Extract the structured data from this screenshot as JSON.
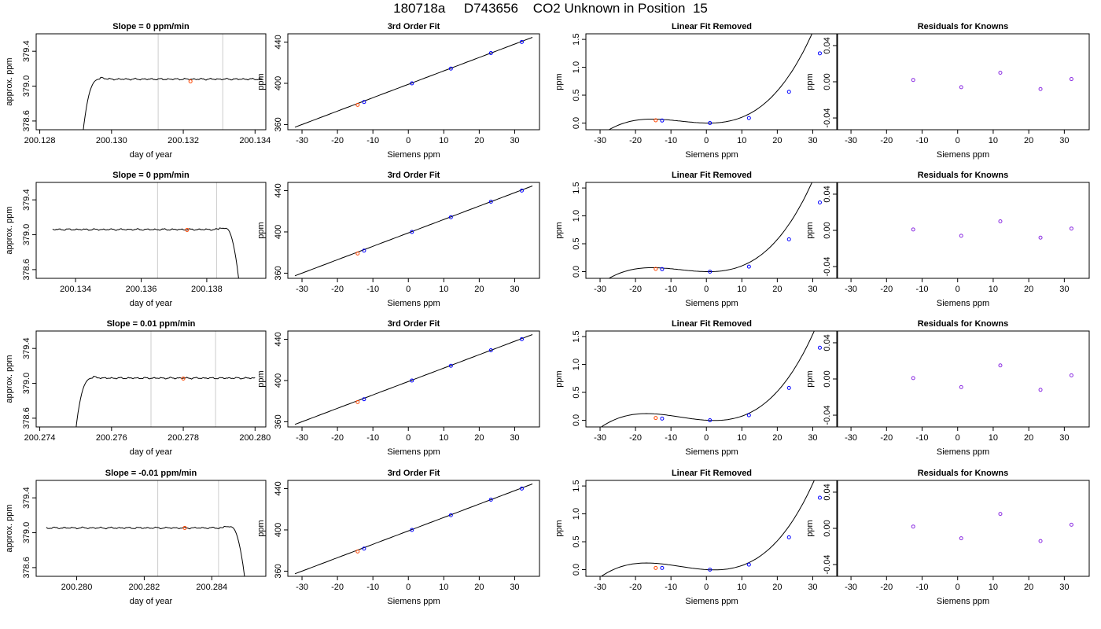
{
  "page_title": "180718a     D743656    CO2 Unknown in Position  15",
  "colors": {
    "trace": "#000000",
    "marker": "#cccccc",
    "unknown": "#ff4500",
    "known": "#0000ff",
    "residual": "#8a2be2"
  },
  "chart_data": [
    {
      "row": 0,
      "type": "line",
      "title": "Slope =  0  ppm/min",
      "xlabel": "day of year",
      "ylabel": "approx. ppm",
      "xlim": [
        200.1279,
        200.1343
      ],
      "ylim": [
        378.5,
        379.6
      ],
      "xticks": [
        200.128,
        200.13,
        200.132,
        200.134
      ],
      "xtick_labels": [
        "200.128",
        "200.130",
        "200.132",
        "200.134"
      ],
      "yticks": [
        378.6,
        379.0,
        379.4
      ],
      "ytick_labels": [
        "378.6",
        "379.0",
        "379.4"
      ],
      "vlines": [
        200.1313,
        200.1331
      ],
      "trace": {
        "x0": 200.1292,
        "x1": 200.1342,
        "plateau": 379.08,
        "rise": "start"
      },
      "unknown_point": {
        "x": 200.1322,
        "y": 379.055
      }
    },
    {
      "row": 0,
      "type": "line",
      "title": "3rd Order Fit",
      "xlabel": "Siemens ppm",
      "ylabel": "ppm",
      "xlim": [
        -34,
        37
      ],
      "ylim": [
        355,
        448
      ],
      "xticks": [
        -30,
        -20,
        -10,
        0,
        10,
        20,
        30
      ],
      "xtick_labels": [
        "-30",
        "-20",
        "-10",
        "0",
        "10",
        "20",
        "30"
      ],
      "yticks": [
        360,
        400,
        440
      ],
      "ytick_labels": [
        "360",
        "400",
        "440"
      ],
      "curve": {
        "x0": -32,
        "x1": 35,
        "a": 399.05,
        "b": 1.3
      },
      "known_points": [
        [
          -12.5,
          381.9
        ],
        [
          1.0,
          400.0
        ],
        [
          12.0,
          414.3
        ],
        [
          23.3,
          429.3
        ],
        [
          32.0,
          440.1
        ]
      ],
      "unknown_point": [
        -14.3,
        379.1
      ]
    },
    {
      "row": 0,
      "type": "line",
      "title": "Linear Fit Removed",
      "xlabel": "Siemens ppm",
      "ylabel": "ppm",
      "xlim": [
        -34,
        37
      ],
      "ylim": [
        -0.12,
        1.6
      ],
      "xticks": [
        -30,
        -20,
        -10,
        0,
        10,
        20,
        30
      ],
      "xtick_labels": [
        "-30",
        "-20",
        "-10",
        "0",
        "10",
        "20",
        "30"
      ],
      "yticks": [
        0.0,
        0.5,
        1.0,
        1.5
      ],
      "ytick_labels": [
        "0.0",
        "0.5",
        "1.0",
        "1.5"
      ],
      "curve": {
        "x0": -32,
        "x1": 35,
        "c1": -0.001,
        "c2": 0.00078,
        "c3": 3.55e-05
      },
      "known_points": [
        [
          -12.5,
          0.045
        ],
        [
          1.0,
          0.0
        ],
        [
          12.0,
          0.09
        ],
        [
          23.3,
          0.56
        ],
        [
          32.0,
          1.25
        ]
      ],
      "unknown_point": [
        -14.3,
        0.05
      ]
    },
    {
      "row": 0,
      "type": "scatter",
      "title": "Residuals for Knowns",
      "xlabel": "Siemens ppm",
      "ylabel": "ppm",
      "xlim": [
        -34,
        37
      ],
      "ylim": [
        -0.053,
        0.053
      ],
      "xticks": [
        -30,
        -20,
        -10,
        0,
        10,
        20,
        30
      ],
      "xtick_labels": [
        "-30",
        "-20",
        "-10",
        "0",
        "10",
        "20",
        "30"
      ],
      "yticks": [
        -0.04,
        0.0,
        0.04
      ],
      "ytick_labels": [
        "-0.04",
        "0.00",
        "0.04"
      ],
      "points": [
        [
          -12.5,
          0.002
        ],
        [
          1.0,
          -0.006
        ],
        [
          12.0,
          0.01
        ],
        [
          23.3,
          -0.008
        ],
        [
          32.0,
          0.003
        ]
      ]
    },
    {
      "row": 1,
      "type": "line",
      "title": "Slope =  0  ppm/min",
      "xlabel": "day of year",
      "ylabel": "approx. ppm",
      "xlim": [
        200.1328,
        200.1398
      ],
      "ylim": [
        378.5,
        379.6
      ],
      "xticks": [
        200.134,
        200.136,
        200.138
      ],
      "xtick_labels": [
        "200.134",
        "200.136",
        "200.138"
      ],
      "yticks": [
        378.6,
        379.0,
        379.4
      ],
      "ytick_labels": [
        "378.6",
        "379.0",
        "379.4"
      ],
      "vlines": [
        200.1365,
        200.1383
      ],
      "trace": {
        "x0": 200.1333,
        "x1": 200.139,
        "plateau": 379.06,
        "rise": "end"
      },
      "unknown_point": {
        "x": 200.1374,
        "y": 379.055
      }
    },
    {
      "row": 1,
      "type": "line",
      "title": "3rd Order Fit",
      "xlabel": "Siemens ppm",
      "ylabel": "ppm",
      "xlim": [
        -34,
        37
      ],
      "ylim": [
        355,
        448
      ],
      "xticks": [
        -30,
        -20,
        -10,
        0,
        10,
        20,
        30
      ],
      "xtick_labels": [
        "-30",
        "-20",
        "-10",
        "0",
        "10",
        "20",
        "30"
      ],
      "yticks": [
        360,
        400,
        440
      ],
      "ytick_labels": [
        "360",
        "400",
        "440"
      ],
      "curve": {
        "x0": -32,
        "x1": 35,
        "a": 399.05,
        "b": 1.3
      },
      "known_points": [
        [
          -12.5,
          381.9
        ],
        [
          1.0,
          400.0
        ],
        [
          12.0,
          414.3
        ],
        [
          23.3,
          429.3
        ],
        [
          32.0,
          440.1
        ]
      ],
      "unknown_point": [
        -14.3,
        379.1
      ]
    },
    {
      "row": 1,
      "type": "line",
      "title": "Linear Fit Removed",
      "xlabel": "Siemens ppm",
      "ylabel": "ppm",
      "xlim": [
        -34,
        37
      ],
      "ylim": [
        -0.12,
        1.6
      ],
      "xticks": [
        -30,
        -20,
        -10,
        0,
        10,
        20,
        30
      ],
      "xtick_labels": [
        "-30",
        "-20",
        "-10",
        "0",
        "10",
        "20",
        "30"
      ],
      "yticks": [
        0.0,
        0.5,
        1.0,
        1.5
      ],
      "ytick_labels": [
        "0.0",
        "0.5",
        "1.0",
        "1.5"
      ],
      "curve": {
        "x0": -32,
        "x1": 35,
        "c1": -0.001,
        "c2": 0.00078,
        "c3": 3.55e-05
      },
      "known_points": [
        [
          -12.5,
          0.045
        ],
        [
          1.0,
          0.0
        ],
        [
          12.0,
          0.09
        ],
        [
          23.3,
          0.58
        ],
        [
          32.0,
          1.24
        ]
      ],
      "unknown_point": [
        -14.3,
        0.05
      ]
    },
    {
      "row": 1,
      "type": "scatter",
      "title": "Residuals for Knowns",
      "xlabel": "Siemens ppm",
      "ylabel": "ppm",
      "xlim": [
        -34,
        37
      ],
      "ylim": [
        -0.053,
        0.053
      ],
      "xticks": [
        -30,
        -20,
        -10,
        0,
        10,
        20,
        30
      ],
      "xtick_labels": [
        "-30",
        "-20",
        "-10",
        "0",
        "10",
        "20",
        "30"
      ],
      "yticks": [
        -0.04,
        0.0,
        0.04
      ],
      "ytick_labels": [
        "-0.04",
        "0.00",
        "0.04"
      ],
      "points": [
        [
          -12.5,
          0.001
        ],
        [
          1.0,
          -0.006
        ],
        [
          12.0,
          0.01
        ],
        [
          23.3,
          -0.008
        ],
        [
          32.0,
          0.002
        ]
      ]
    },
    {
      "row": 2,
      "type": "line",
      "title": "Slope =  0.01  ppm/min",
      "xlabel": "day of year",
      "ylabel": "approx. ppm",
      "xlim": [
        200.2739,
        200.2803
      ],
      "ylim": [
        378.5,
        379.6
      ],
      "xticks": [
        200.274,
        200.276,
        200.278,
        200.28
      ],
      "xtick_labels": [
        "200.274",
        "200.276",
        "200.278",
        "200.280"
      ],
      "yticks": [
        378.6,
        379.0,
        379.4
      ],
      "ytick_labels": [
        "378.6",
        "379.0",
        "379.4"
      ],
      "vlines": [
        200.2771,
        200.2789
      ],
      "trace": {
        "x0": 200.275,
        "x1": 200.28,
        "plateau": 379.06,
        "rise": "start"
      },
      "unknown_point": {
        "x": 200.278,
        "y": 379.055
      }
    },
    {
      "row": 2,
      "type": "line",
      "title": "3rd Order Fit",
      "xlabel": "Siemens ppm",
      "ylabel": "ppm",
      "xlim": [
        -34,
        37
      ],
      "ylim": [
        355,
        448
      ],
      "xticks": [
        -30,
        -20,
        -10,
        0,
        10,
        20,
        30
      ],
      "xtick_labels": [
        "-30",
        "-20",
        "-10",
        "0",
        "10",
        "20",
        "30"
      ],
      "yticks": [
        360,
        400,
        440
      ],
      "ytick_labels": [
        "360",
        "400",
        "440"
      ],
      "curve": {
        "x0": -32,
        "x1": 35,
        "a": 399.05,
        "b": 1.3
      },
      "known_points": [
        [
          -12.5,
          381.9
        ],
        [
          1.0,
          400.0
        ],
        [
          12.0,
          414.3
        ],
        [
          23.3,
          429.3
        ],
        [
          32.0,
          440.1
        ]
      ],
      "unknown_point": [
        -14.3,
        379.1
      ]
    },
    {
      "row": 2,
      "type": "line",
      "title": "Linear Fit Removed",
      "xlabel": "Siemens ppm",
      "ylabel": "ppm",
      "xlim": [
        -34,
        37
      ],
      "ylim": [
        -0.12,
        1.6
      ],
      "xticks": [
        -30,
        -20,
        -10,
        0,
        10,
        20,
        30
      ],
      "xtick_labels": [
        "-30",
        "-20",
        "-10",
        "0",
        "10",
        "20",
        "30"
      ],
      "yticks": [
        0.0,
        0.5,
        1.0,
        1.5
      ],
      "ytick_labels": [
        "0.0",
        "0.5",
        "1.0",
        "1.5"
      ],
      "curve": {
        "x0": -32,
        "x1": 35,
        "c1": -0.004,
        "c2": 0.00078,
        "c3": 3.55e-05
      },
      "known_points": [
        [
          -12.5,
          0.03
        ],
        [
          1.0,
          0.0
        ],
        [
          12.0,
          0.09
        ],
        [
          23.3,
          0.58
        ],
        [
          32.0,
          1.3
        ]
      ],
      "unknown_point": [
        -14.3,
        0.04
      ]
    },
    {
      "row": 2,
      "type": "scatter",
      "title": "Residuals for Knowns",
      "xlabel": "Siemens ppm",
      "ylabel": "ppm",
      "xlim": [
        -34,
        37
      ],
      "ylim": [
        -0.053,
        0.053
      ],
      "xticks": [
        -30,
        -20,
        -10,
        0,
        10,
        20,
        30
      ],
      "xtick_labels": [
        "-30",
        "-20",
        "-10",
        "0",
        "10",
        "20",
        "30"
      ],
      "yticks": [
        -0.04,
        0.0,
        0.04
      ],
      "ytick_labels": [
        "-0.04",
        "0.00",
        "0.04"
      ],
      "points": [
        [
          -12.5,
          0.001
        ],
        [
          1.0,
          -0.009
        ],
        [
          12.0,
          0.015
        ],
        [
          23.3,
          -0.012
        ],
        [
          32.0,
          0.004
        ]
      ]
    },
    {
      "row": 3,
      "type": "line",
      "title": "Slope =  -0.01  ppm/min",
      "xlabel": "day of year",
      "ylabel": "approx. ppm",
      "xlim": [
        200.2788,
        200.2856
      ],
      "ylim": [
        378.5,
        379.6
      ],
      "xticks": [
        200.28,
        200.282,
        200.284
      ],
      "xtick_labels": [
        "200.280",
        "200.282",
        "200.284"
      ],
      "yticks": [
        378.6,
        379.0,
        379.4
      ],
      "ytick_labels": [
        "378.6",
        "379.0",
        "379.4"
      ],
      "vlines": [
        200.2824,
        200.2842
      ],
      "trace": {
        "x0": 200.2791,
        "x1": 200.285,
        "plateau": 379.055,
        "rise": "end"
      },
      "unknown_point": {
        "x": 200.2832,
        "y": 379.055
      }
    },
    {
      "row": 3,
      "type": "line",
      "title": "3rd Order Fit",
      "xlabel": "Siemens ppm",
      "ylabel": "ppm",
      "xlim": [
        -34,
        37
      ],
      "ylim": [
        355,
        448
      ],
      "xticks": [
        -30,
        -20,
        -10,
        0,
        10,
        20,
        30
      ],
      "xtick_labels": [
        "-30",
        "-20",
        "-10",
        "0",
        "10",
        "20",
        "30"
      ],
      "yticks": [
        360,
        400,
        440
      ],
      "ytick_labels": [
        "360",
        "400",
        "440"
      ],
      "curve": {
        "x0": -32,
        "x1": 35,
        "a": 399.05,
        "b": 1.3
      },
      "known_points": [
        [
          -12.5,
          381.9
        ],
        [
          1.0,
          400.0
        ],
        [
          12.0,
          414.3
        ],
        [
          23.3,
          429.3
        ],
        [
          32.0,
          440.1
        ]
      ],
      "unknown_point": [
        -14.3,
        379.1
      ]
    },
    {
      "row": 3,
      "type": "line",
      "title": "Linear Fit Removed",
      "xlabel": "Siemens ppm",
      "ylabel": "ppm",
      "xlim": [
        -34,
        37
      ],
      "ylim": [
        -0.12,
        1.6
      ],
      "xticks": [
        -30,
        -20,
        -10,
        0,
        10,
        20,
        30
      ],
      "xtick_labels": [
        "-30",
        "-20",
        "-10",
        "0",
        "10",
        "20",
        "30"
      ],
      "yticks": [
        0.0,
        0.5,
        1.0,
        1.5
      ],
      "ytick_labels": [
        "0.0",
        "0.5",
        "1.0",
        "1.5"
      ],
      "curve": {
        "x0": -32,
        "x1": 35,
        "c1": -0.004,
        "c2": 0.00078,
        "c3": 3.55e-05
      },
      "known_points": [
        [
          -12.5,
          0.03
        ],
        [
          1.0,
          0.0
        ],
        [
          12.0,
          0.09
        ],
        [
          23.3,
          0.58
        ],
        [
          32.0,
          1.29
        ]
      ],
      "unknown_point": [
        -14.3,
        0.03
      ]
    },
    {
      "row": 3,
      "type": "scatter",
      "title": "Residuals for Knowns",
      "xlabel": "Siemens ppm",
      "ylabel": "ppm",
      "xlim": [
        -34,
        37
      ],
      "ylim": [
        -0.053,
        0.053
      ],
      "xticks": [
        -30,
        -20,
        -10,
        0,
        10,
        20,
        30
      ],
      "xtick_labels": [
        "-30",
        "-20",
        "-10",
        "0",
        "10",
        "20",
        "30"
      ],
      "yticks": [
        -0.04,
        0.0,
        0.04
      ],
      "ytick_labels": [
        "-0.04",
        "0.00",
        "0.04"
      ],
      "points": [
        [
          -12.5,
          0.002
        ],
        [
          1.0,
          -0.011
        ],
        [
          12.0,
          0.016
        ],
        [
          23.3,
          -0.014
        ],
        [
          32.0,
          0.004
        ]
      ]
    }
  ]
}
